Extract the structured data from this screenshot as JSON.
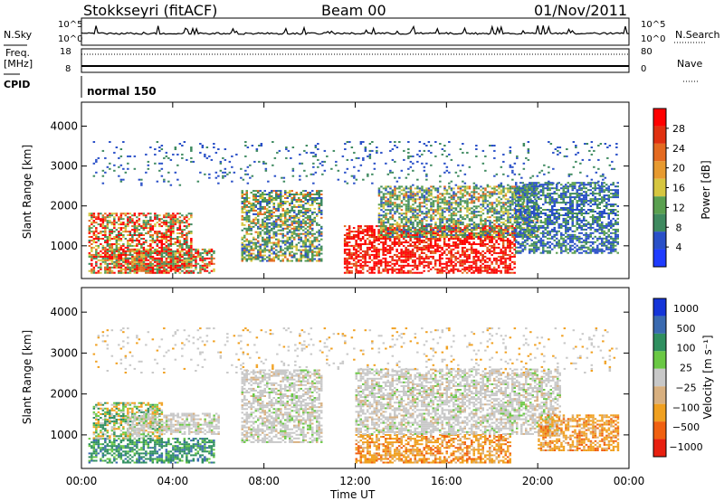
{
  "header": {
    "station": "Stokkseyri (fitACF)",
    "beam": "Beam 00",
    "date": "01/Nov/2011"
  },
  "strip": {
    "nsky_label": "N.Sky",
    "nsearch_label": "N.Search",
    "freq_label": "Freq.",
    "freq_unit": "[MHz]",
    "nave_label": "Nave",
    "cpid_label": "CPID",
    "cpid_value": "normal 150",
    "noise_tick_top": "10^5",
    "noise_tick_bottom": "10^0",
    "freq_ticks": [
      "18",
      "8"
    ],
    "nave_ticks": [
      "80",
      "0"
    ]
  },
  "colors": {
    "power_scale": [
      "#1f3cff",
      "#2a50c8",
      "#3f8a60",
      "#5aa050",
      "#d6c640",
      "#e79a30",
      "#e46a20",
      "#e03010",
      "#ff0000"
    ],
    "velocity_scale": [
      "#1535d8",
      "#3a6ab0",
      "#2f8f5f",
      "#6ac844",
      "#c8c8c8",
      "#d8b080",
      "#f0a020",
      "#f06010",
      "#e82010"
    ]
  },
  "chart_data": [
    {
      "type": "heatmap",
      "name": "power-panel",
      "ylabel": "Slant Range [km]",
      "xlabel": "",
      "x_ticks": [
        "00:00",
        "04:00",
        "08:00",
        "12:00",
        "16:00",
        "20:00",
        "00:00"
      ],
      "y_ticks": [
        1000,
        2000,
        3000,
        4000
      ],
      "ylim": [
        180,
        4600
      ],
      "colorbar": {
        "label": "Power [dB]",
        "ticks": [
          4,
          8,
          12,
          16,
          20,
          24,
          28
        ],
        "range": [
          0,
          32
        ]
      },
      "regions": [
        {
          "t": [
            0.3,
            4.8
          ],
          "r": [
            300,
            1800
          ],
          "level": "high"
        },
        {
          "t": [
            1.0,
            5.8
          ],
          "r": [
            300,
            900
          ],
          "level": "high"
        },
        {
          "t": [
            7.0,
            10.5
          ],
          "r": [
            600,
            2400
          ],
          "level": "mid"
        },
        {
          "t": [
            11.5,
            19.0
          ],
          "r": [
            300,
            1500
          ],
          "level": "max"
        },
        {
          "t": [
            13.0,
            20.0
          ],
          "r": [
            1200,
            2500
          ],
          "level": "mid"
        },
        {
          "t": [
            19.0,
            23.5
          ],
          "r": [
            800,
            2600
          ],
          "level": "low"
        },
        {
          "t": [
            0.5,
            23.5
          ],
          "r": [
            2500,
            3600
          ],
          "level": "sparse"
        }
      ]
    },
    {
      "type": "heatmap",
      "name": "velocity-panel",
      "ylabel": "Slant Range [km]",
      "xlabel": "Time UT",
      "x_ticks": [
        "00:00",
        "04:00",
        "08:00",
        "12:00",
        "16:00",
        "20:00",
        "00:00"
      ],
      "y_ticks": [
        1000,
        2000,
        3000,
        4000
      ],
      "ylim": [
        180,
        4600
      ],
      "colorbar": {
        "label": "Velocity [m s⁻¹]",
        "ticks": [
          "1000",
          "500",
          "100",
          "25",
          "−25",
          "−100",
          "−500",
          "−1000"
        ]
      },
      "regions": [
        {
          "t": [
            0.3,
            5.8
          ],
          "r": [
            300,
            900
          ],
          "level": "pos"
        },
        {
          "t": [
            0.5,
            3.5
          ],
          "r": [
            900,
            1800
          ],
          "level": "mixed"
        },
        {
          "t": [
            2.0,
            6.0
          ],
          "r": [
            1000,
            1500
          ],
          "level": "zero"
        },
        {
          "t": [
            7.0,
            10.5
          ],
          "r": [
            800,
            2600
          ],
          "level": "zero"
        },
        {
          "t": [
            12.0,
            18.8
          ],
          "r": [
            300,
            1000
          ],
          "level": "neg"
        },
        {
          "t": [
            12.0,
            21.0
          ],
          "r": [
            1000,
            2600
          ],
          "level": "zero"
        },
        {
          "t": [
            20.0,
            23.5
          ],
          "r": [
            600,
            1500
          ],
          "level": "neg"
        },
        {
          "t": [
            0.5,
            23.5
          ],
          "r": [
            2500,
            3600
          ],
          "level": "sparse"
        }
      ]
    }
  ]
}
